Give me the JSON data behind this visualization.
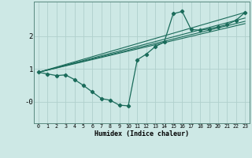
{
  "xlabel": "Humidex (Indice chaleur)",
  "bg_color": "#cde8e5",
  "grid_color": "#b0d0cc",
  "line_color": "#1a6b5a",
  "xlim": [
    -0.5,
    23.5
  ],
  "ylim": [
    -0.65,
    3.05
  ],
  "xticks": [
    0,
    1,
    2,
    3,
    4,
    5,
    6,
    7,
    8,
    9,
    10,
    11,
    12,
    13,
    14,
    15,
    16,
    17,
    18,
    19,
    20,
    21,
    22,
    23
  ],
  "yticks": [
    0.0,
    1.0,
    2.0
  ],
  "ytick_labels": [
    "-0",
    "1",
    "2"
  ],
  "line1_x": [
    0,
    1,
    2,
    3,
    4,
    5,
    6,
    7,
    8,
    9,
    10,
    11,
    12,
    13,
    14,
    15,
    16,
    17,
    18,
    19,
    20,
    21,
    22,
    23
  ],
  "line1_y": [
    0.9,
    0.85,
    0.8,
    0.82,
    0.68,
    0.5,
    0.3,
    0.1,
    0.05,
    -0.1,
    -0.12,
    1.28,
    1.45,
    1.68,
    1.82,
    2.68,
    2.75,
    2.2,
    2.18,
    2.22,
    2.28,
    2.35,
    2.48,
    2.72
  ],
  "line2_x": [
    0,
    23
  ],
  "line2_y": [
    0.9,
    2.72
  ],
  "line3_x": [
    0,
    23
  ],
  "line3_y": [
    0.9,
    2.55
  ],
  "line4_x": [
    0,
    23
  ],
  "line4_y": [
    0.9,
    2.45
  ],
  "line5_x": [
    0,
    23
  ],
  "line5_y": [
    0.9,
    2.38
  ]
}
